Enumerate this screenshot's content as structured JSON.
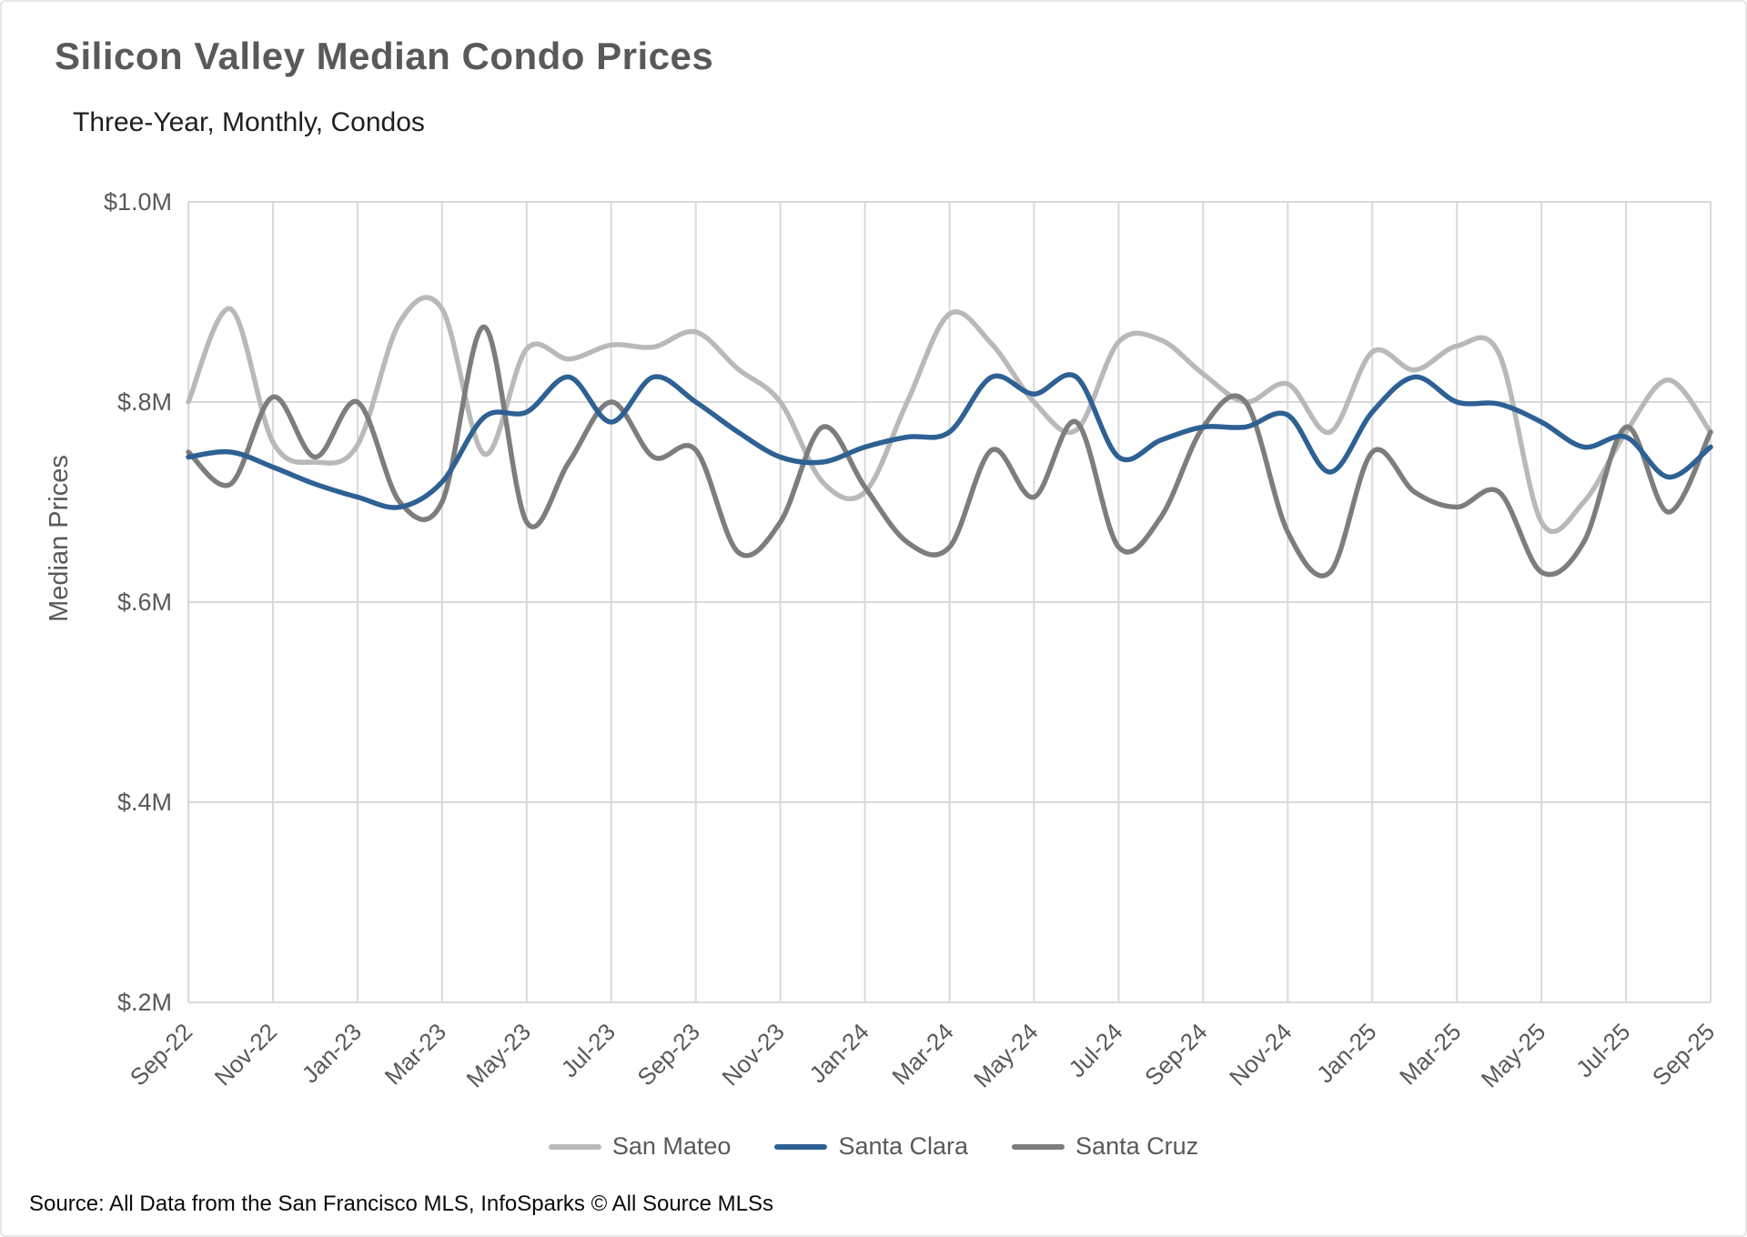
{
  "chart": {
    "title": "Silicon Valley Median Condo Prices",
    "subtitle": "Three-Year, Monthly, Condos",
    "source": "Source: All Data from the San Francisco MLS, InfoSparks © All Source MLSs"
  },
  "chart_data": {
    "type": "line",
    "title": "Silicon Valley Median Condo Prices",
    "subtitle": "Three-Year, Monthly, Condos",
    "xlabel": "",
    "ylabel": "Median Prices",
    "ylim": [
      0.2,
      1.0
    ],
    "grid": true,
    "legend_position": "bottom",
    "units": "$M",
    "x_tick_every": 2,
    "y_ticks": [
      {
        "v": 1.0,
        "label": "$1.0M"
      },
      {
        "v": 0.8,
        "label": "$.8M"
      },
      {
        "v": 0.6,
        "label": "$.6M"
      },
      {
        "v": 0.4,
        "label": "$.4M"
      },
      {
        "v": 0.2,
        "label": "$.2M"
      }
    ],
    "x": [
      "Sep-22",
      "Oct-22",
      "Nov-22",
      "Dec-22",
      "Jan-23",
      "Feb-23",
      "Mar-23",
      "Apr-23",
      "May-23",
      "Jun-23",
      "Jul-23",
      "Aug-23",
      "Sep-23",
      "Oct-23",
      "Nov-23",
      "Dec-23",
      "Jan-24",
      "Feb-24",
      "Mar-24",
      "Apr-24",
      "May-24",
      "Jun-24",
      "Jul-24",
      "Aug-24",
      "Sep-24",
      "Oct-24",
      "Nov-24",
      "Dec-24",
      "Jan-25",
      "Feb-25",
      "Mar-25",
      "Apr-25",
      "May-25",
      "Jun-25",
      "Jul-25",
      "Aug-25",
      "Sep-25"
    ],
    "series": [
      {
        "name": "San Mateo",
        "color": "#b9b9b9",
        "values": [
          0.8,
          0.893,
          0.76,
          0.74,
          0.757,
          0.88,
          0.893,
          0.748,
          0.853,
          0.843,
          0.857,
          0.855,
          0.87,
          0.833,
          0.8,
          0.72,
          0.71,
          0.8,
          0.888,
          0.858,
          0.8,
          0.772,
          0.86,
          0.862,
          0.828,
          0.8,
          0.818,
          0.77,
          0.85,
          0.832,
          0.856,
          0.848,
          0.68,
          0.7,
          0.77,
          0.822,
          0.77
        ]
      },
      {
        "name": "Santa Clara",
        "color": "#2e6193",
        "values": [
          0.745,
          0.75,
          0.735,
          0.718,
          0.705,
          0.695,
          0.72,
          0.785,
          0.79,
          0.825,
          0.78,
          0.825,
          0.8,
          0.77,
          0.745,
          0.74,
          0.755,
          0.765,
          0.77,
          0.825,
          0.808,
          0.825,
          0.745,
          0.762,
          0.775,
          0.775,
          0.787,
          0.73,
          0.79,
          0.825,
          0.8,
          0.798,
          0.78,
          0.755,
          0.765,
          0.725,
          0.755
        ]
      },
      {
        "name": "Santa Cruz",
        "color": "#7d7d7d",
        "values": [
          0.75,
          0.718,
          0.805,
          0.745,
          0.8,
          0.7,
          0.7,
          0.875,
          0.68,
          0.74,
          0.8,
          0.745,
          0.752,
          0.65,
          0.68,
          0.775,
          0.715,
          0.66,
          0.655,
          0.752,
          0.705,
          0.78,
          0.655,
          0.685,
          0.775,
          0.8,
          0.67,
          0.63,
          0.75,
          0.71,
          0.695,
          0.71,
          0.63,
          0.66,
          0.775,
          0.69,
          0.77
        ]
      }
    ]
  }
}
